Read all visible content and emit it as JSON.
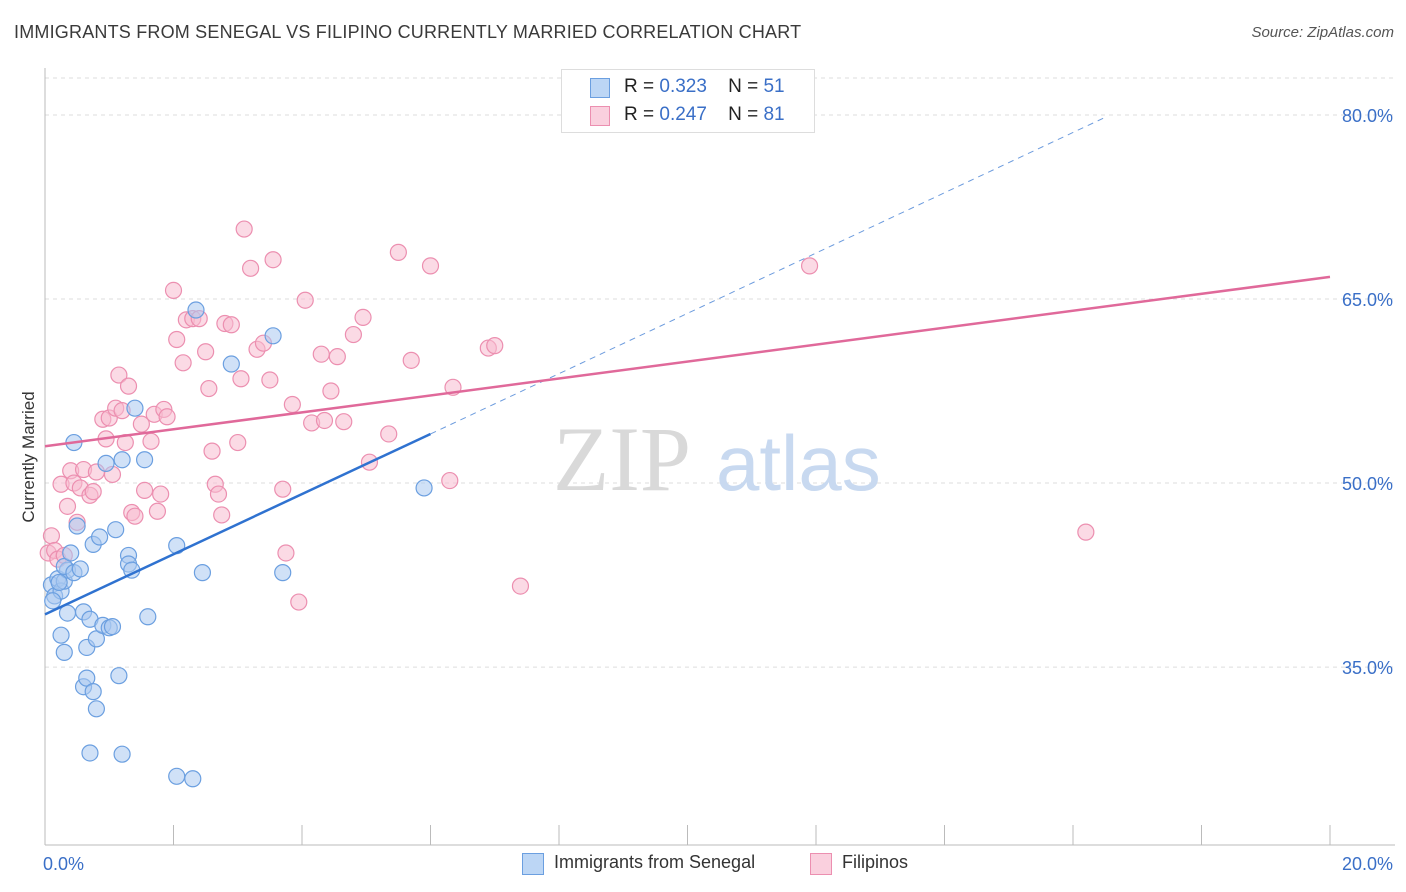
{
  "title": "IMMIGRANTS FROM SENEGAL VS FILIPINO CURRENTLY MARRIED CORRELATION CHART",
  "source": "Source: ZipAtlas.com",
  "watermark": {
    "zip": "ZIP",
    "atlas": "atlas"
  },
  "colors": {
    "blue_fill": "#a9c8f0",
    "blue_stroke": "#6b9fe0",
    "blue_line": "#2f72d0",
    "pink_fill": "#f7bcd0",
    "pink_stroke": "#ec8fb0",
    "pink_line": "#e0699a",
    "grid": "#dddddd",
    "axis": "#bbbbbb",
    "tick_text": "#3a6fc7"
  },
  "legend": {
    "series": [
      {
        "r_label": "R =",
        "r_value": "0.323",
        "n_label": "N =",
        "n_value": "51"
      },
      {
        "r_label": "R =",
        "r_value": "0.247",
        "n_label": "N =",
        "n_value": "81"
      }
    ]
  },
  "bottom_legend": [
    "Immigrants from Senegal",
    "Filipinos"
  ],
  "chart_data": {
    "type": "scatter",
    "title": "IMMIGRANTS FROM SENEGAL VS FILIPINO CURRENTLY MARRIED CORRELATION CHART",
    "xlabel": "",
    "ylabel": "Currently Married",
    "xlim": [
      0,
      20
    ],
    "ylim": [
      20.5,
      83.5
    ],
    "x_tick_labels": [
      {
        "value": 0,
        "label": "0.0%"
      },
      {
        "value": 20,
        "label": "20.0%"
      }
    ],
    "x_minor_ticks": [
      0,
      2,
      4,
      6,
      8,
      10,
      12,
      14,
      16,
      18,
      20
    ],
    "y_ticks": [
      {
        "value": 35,
        "label": "35.0%"
      },
      {
        "value": 50,
        "label": "50.0%"
      },
      {
        "value": 65,
        "label": "65.0%"
      },
      {
        "value": 80,
        "label": "80.0%"
      }
    ],
    "grid": true,
    "series": [
      {
        "name": "Immigrants from Senegal",
        "r": 0.323,
        "n": 51,
        "trend": {
          "x0": 0,
          "y0": 39.3,
          "x1": 6.0,
          "y1": 54.0,
          "dash_to_x": 16.5,
          "dash_to_y": 79.8
        },
        "points": [
          [
            0.1,
            41.7
          ],
          [
            0.15,
            40.8
          ],
          [
            0.2,
            42.2
          ],
          [
            0.25,
            41.2
          ],
          [
            0.3,
            42.0
          ],
          [
            0.35,
            42.9
          ],
          [
            0.12,
            40.4
          ],
          [
            0.22,
            41.9
          ],
          [
            0.3,
            43.2
          ],
          [
            0.4,
            44.3
          ],
          [
            0.5,
            46.5
          ],
          [
            0.45,
            42.7
          ],
          [
            0.55,
            43.0
          ],
          [
            0.6,
            39.5
          ],
          [
            0.35,
            39.4
          ],
          [
            0.25,
            37.6
          ],
          [
            0.3,
            36.2
          ],
          [
            0.7,
            38.9
          ],
          [
            0.65,
            36.6
          ],
          [
            0.8,
            37.3
          ],
          [
            0.9,
            38.4
          ],
          [
            1.0,
            38.2
          ],
          [
            1.05,
            38.3
          ],
          [
            0.75,
            45.0
          ],
          [
            0.85,
            45.6
          ],
          [
            1.1,
            46.2
          ],
          [
            0.95,
            51.6
          ],
          [
            1.2,
            51.9
          ],
          [
            1.55,
            51.9
          ],
          [
            1.4,
            56.1
          ],
          [
            0.45,
            53.3
          ],
          [
            1.3,
            44.1
          ],
          [
            0.6,
            33.4
          ],
          [
            0.65,
            34.1
          ],
          [
            0.75,
            33.0
          ],
          [
            0.8,
            31.6
          ],
          [
            1.15,
            34.3
          ],
          [
            0.7,
            28.0
          ],
          [
            1.2,
            27.9
          ],
          [
            2.05,
            26.1
          ],
          [
            2.3,
            25.9
          ],
          [
            2.35,
            64.1
          ],
          [
            2.9,
            59.7
          ],
          [
            3.55,
            62.0
          ],
          [
            2.05,
            44.9
          ],
          [
            2.45,
            42.7
          ],
          [
            3.7,
            42.7
          ],
          [
            1.6,
            39.1
          ],
          [
            5.9,
            49.6
          ],
          [
            1.3,
            43.4
          ],
          [
            1.35,
            42.9
          ]
        ]
      },
      {
        "name": "Filipinos",
        "r": 0.247,
        "n": 81,
        "trend": {
          "x0": 0,
          "y0": 53.0,
          "x1": 20,
          "y1": 66.8
        },
        "points": [
          [
            0.05,
            44.3
          ],
          [
            0.1,
            45.7
          ],
          [
            0.15,
            44.5
          ],
          [
            0.2,
            43.8
          ],
          [
            0.3,
            44.1
          ],
          [
            0.25,
            49.9
          ],
          [
            0.35,
            48.1
          ],
          [
            0.4,
            51.0
          ],
          [
            0.5,
            46.8
          ],
          [
            0.45,
            50.0
          ],
          [
            0.55,
            49.6
          ],
          [
            0.6,
            51.1
          ],
          [
            0.7,
            49.0
          ],
          [
            0.75,
            49.3
          ],
          [
            0.8,
            50.9
          ],
          [
            0.9,
            55.2
          ],
          [
            0.95,
            53.6
          ],
          [
            1.0,
            55.3
          ],
          [
            1.05,
            50.7
          ],
          [
            1.1,
            56.1
          ],
          [
            1.15,
            58.8
          ],
          [
            1.2,
            55.9
          ],
          [
            1.25,
            53.3
          ],
          [
            1.3,
            57.9
          ],
          [
            1.35,
            47.6
          ],
          [
            1.4,
            47.3
          ],
          [
            1.5,
            54.8
          ],
          [
            1.55,
            49.4
          ],
          [
            1.65,
            53.4
          ],
          [
            1.7,
            55.6
          ],
          [
            1.75,
            47.7
          ],
          [
            1.8,
            49.1
          ],
          [
            1.85,
            56.0
          ],
          [
            1.9,
            55.4
          ],
          [
            2.0,
            65.7
          ],
          [
            2.05,
            61.7
          ],
          [
            2.15,
            59.8
          ],
          [
            2.2,
            63.3
          ],
          [
            2.3,
            63.4
          ],
          [
            2.4,
            63.4
          ],
          [
            2.5,
            60.7
          ],
          [
            2.55,
            57.7
          ],
          [
            2.6,
            52.6
          ],
          [
            2.65,
            49.9
          ],
          [
            2.7,
            49.1
          ],
          [
            2.75,
            47.4
          ],
          [
            2.8,
            63.0
          ],
          [
            2.9,
            62.9
          ],
          [
            3.0,
            53.3
          ],
          [
            3.05,
            58.5
          ],
          [
            3.1,
            70.7
          ],
          [
            3.2,
            67.5
          ],
          [
            3.3,
            60.9
          ],
          [
            3.4,
            61.4
          ],
          [
            3.5,
            58.4
          ],
          [
            3.55,
            68.2
          ],
          [
            3.7,
            49.5
          ],
          [
            3.75,
            44.3
          ],
          [
            3.85,
            56.4
          ],
          [
            3.95,
            40.3
          ],
          [
            4.05,
            64.9
          ],
          [
            4.15,
            54.9
          ],
          [
            4.3,
            60.5
          ],
          [
            4.35,
            55.1
          ],
          [
            4.45,
            57.5
          ],
          [
            4.55,
            60.3
          ],
          [
            4.65,
            55.0
          ],
          [
            4.8,
            62.1
          ],
          [
            4.95,
            63.5
          ],
          [
            5.05,
            51.7
          ],
          [
            5.35,
            54.0
          ],
          [
            5.5,
            68.8
          ],
          [
            5.7,
            60.0
          ],
          [
            6.0,
            67.7
          ],
          [
            6.3,
            50.2
          ],
          [
            6.35,
            57.8
          ],
          [
            6.9,
            61.0
          ],
          [
            7.0,
            61.2
          ],
          [
            7.4,
            41.6
          ],
          [
            11.9,
            67.7
          ],
          [
            16.2,
            46.0
          ]
        ]
      }
    ]
  }
}
